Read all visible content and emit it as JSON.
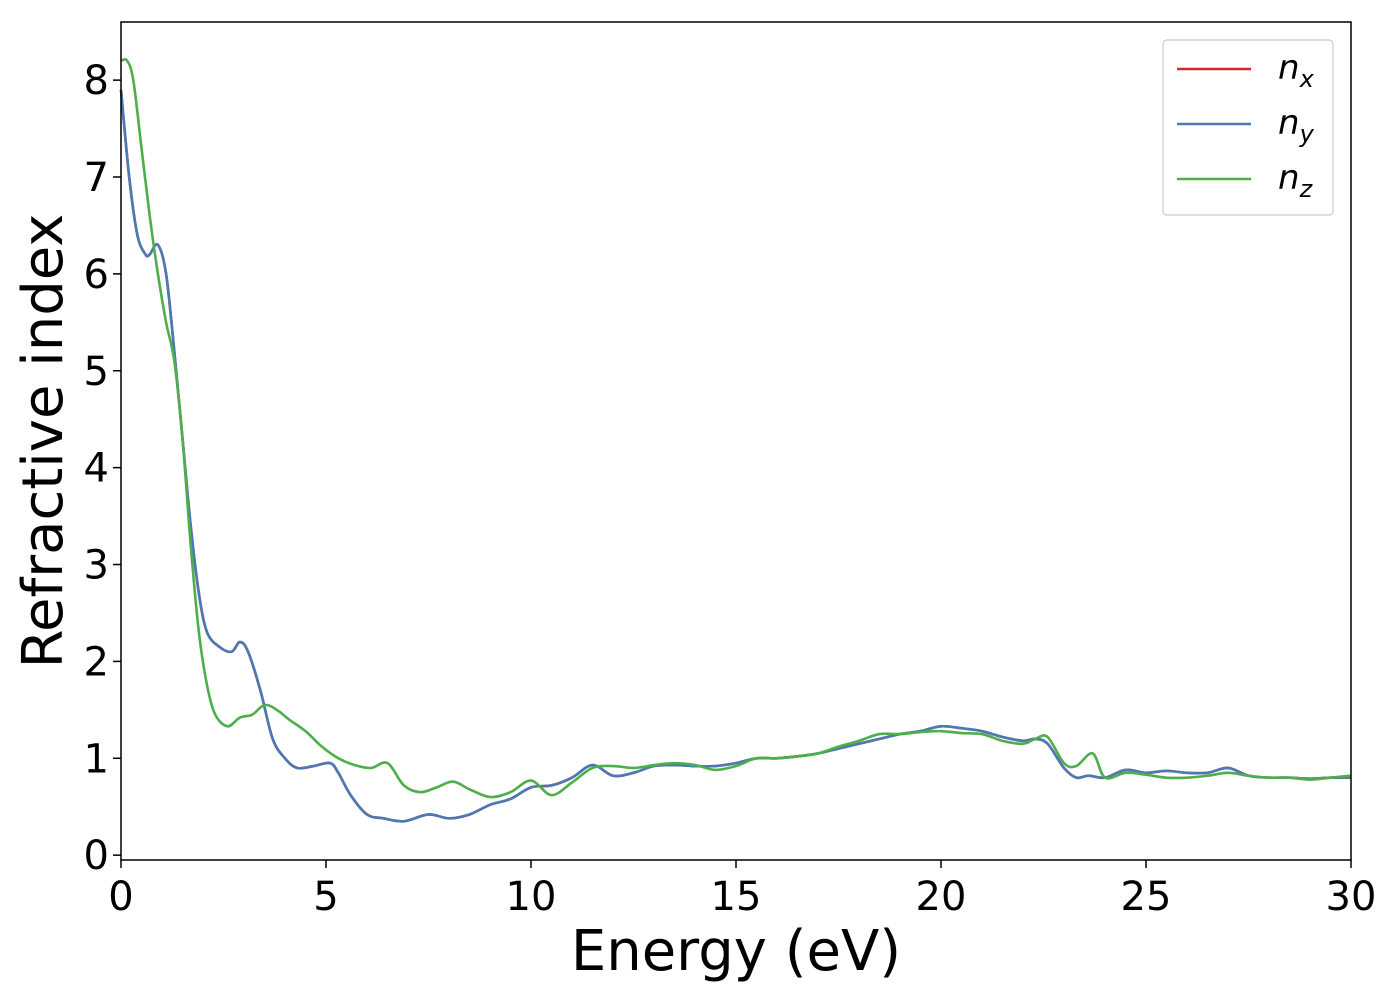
{
  "chart_data": {
    "type": "line",
    "xlabel": "Energy (eV)",
    "ylabel": "Refractive index",
    "xlim": [
      0,
      30
    ],
    "ylim": [
      -0.05,
      8.6
    ],
    "xticks": [
      "0",
      "5",
      "10",
      "15",
      "20",
      "25",
      "30"
    ],
    "yticks": [
      "0",
      "1",
      "2",
      "3",
      "4",
      "5",
      "6",
      "7",
      "8"
    ],
    "grid": false,
    "legend_position": "top-right",
    "series": [
      {
        "name": "n",
        "subscript": "x",
        "color": "#d62728",
        "x": [
          0,
          0.2,
          0.4,
          0.6,
          0.7,
          0.9,
          1.1,
          1.3,
          1.5,
          1.7,
          1.9,
          2.1,
          2.4,
          2.7,
          2.9,
          3.1,
          3.4,
          3.7,
          4.0,
          4.3,
          4.7,
          5.1,
          5.3,
          5.6,
          6.0,
          6.4,
          6.9,
          7.5,
          8.0,
          8.5,
          9.0,
          9.5,
          10.0,
          10.5,
          11.0,
          11.5,
          12.0,
          12.5,
          13.0,
          13.5,
          14.0,
          14.5,
          15.0,
          15.5,
          16.0,
          16.5,
          17.0,
          17.5,
          18.0,
          18.5,
          19.0,
          19.5,
          20.0,
          20.5,
          21.0,
          21.5,
          22.0,
          22.3,
          22.6,
          23.0,
          23.3,
          23.6,
          24.0,
          24.5,
          25.0,
          25.5,
          26.0,
          26.5,
          27.0,
          27.5,
          28.0,
          28.5,
          29.0,
          29.5,
          30.0
        ],
        "y": [
          7.9,
          7.0,
          6.4,
          6.2,
          6.2,
          6.3,
          6.0,
          5.2,
          4.3,
          3.4,
          2.7,
          2.3,
          2.15,
          2.1,
          2.2,
          2.1,
          1.7,
          1.2,
          1.0,
          0.9,
          0.92,
          0.95,
          0.85,
          0.62,
          0.42,
          0.38,
          0.35,
          0.42,
          0.38,
          0.42,
          0.52,
          0.58,
          0.7,
          0.72,
          0.8,
          0.93,
          0.82,
          0.85,
          0.92,
          0.93,
          0.92,
          0.92,
          0.95,
          1.0,
          1.0,
          1.02,
          1.05,
          1.1,
          1.15,
          1.2,
          1.25,
          1.28,
          1.33,
          1.31,
          1.28,
          1.22,
          1.18,
          1.2,
          1.15,
          0.9,
          0.8,
          0.82,
          0.8,
          0.88,
          0.85,
          0.87,
          0.85,
          0.85,
          0.9,
          0.82,
          0.8,
          0.8,
          0.79,
          0.8,
          0.8
        ]
      },
      {
        "name": "n",
        "subscript": "y",
        "color": "#4a7ab5",
        "x": [
          0,
          0.2,
          0.4,
          0.6,
          0.7,
          0.9,
          1.1,
          1.3,
          1.5,
          1.7,
          1.9,
          2.1,
          2.4,
          2.7,
          2.9,
          3.1,
          3.4,
          3.7,
          4.0,
          4.3,
          4.7,
          5.1,
          5.3,
          5.6,
          6.0,
          6.4,
          6.9,
          7.5,
          8.0,
          8.5,
          9.0,
          9.5,
          10.0,
          10.5,
          11.0,
          11.5,
          12.0,
          12.5,
          13.0,
          13.5,
          14.0,
          14.5,
          15.0,
          15.5,
          16.0,
          16.5,
          17.0,
          17.5,
          18.0,
          18.5,
          19.0,
          19.5,
          20.0,
          20.5,
          21.0,
          21.5,
          22.0,
          22.3,
          22.6,
          23.0,
          23.3,
          23.6,
          24.0,
          24.5,
          25.0,
          25.5,
          26.0,
          26.5,
          27.0,
          27.5,
          28.0,
          28.5,
          29.0,
          29.5,
          30.0
        ],
        "y": [
          7.9,
          7.0,
          6.4,
          6.2,
          6.2,
          6.3,
          6.0,
          5.2,
          4.3,
          3.4,
          2.7,
          2.3,
          2.15,
          2.1,
          2.2,
          2.1,
          1.7,
          1.2,
          1.0,
          0.9,
          0.92,
          0.95,
          0.85,
          0.62,
          0.42,
          0.38,
          0.35,
          0.42,
          0.38,
          0.42,
          0.52,
          0.58,
          0.7,
          0.72,
          0.8,
          0.93,
          0.82,
          0.85,
          0.92,
          0.93,
          0.92,
          0.92,
          0.95,
          1.0,
          1.0,
          1.02,
          1.05,
          1.1,
          1.15,
          1.2,
          1.25,
          1.28,
          1.33,
          1.31,
          1.28,
          1.22,
          1.18,
          1.2,
          1.15,
          0.9,
          0.8,
          0.82,
          0.8,
          0.88,
          0.85,
          0.87,
          0.85,
          0.85,
          0.9,
          0.82,
          0.8,
          0.8,
          0.79,
          0.8,
          0.8
        ]
      },
      {
        "name": "n",
        "subscript": "z",
        "color": "#4daf4a",
        "x": [
          0,
          0.15,
          0.3,
          0.5,
          0.7,
          0.9,
          1.1,
          1.3,
          1.5,
          1.7,
          1.9,
          2.1,
          2.3,
          2.6,
          2.9,
          3.2,
          3.5,
          3.8,
          4.1,
          4.5,
          4.9,
          5.3,
          5.7,
          6.1,
          6.5,
          6.9,
          7.3,
          7.7,
          8.1,
          8.5,
          9.0,
          9.5,
          10.0,
          10.5,
          11.0,
          11.5,
          12.0,
          12.5,
          13.0,
          13.5,
          14.0,
          14.5,
          15.0,
          15.5,
          16.0,
          16.5,
          17.0,
          17.5,
          18.0,
          18.5,
          19.0,
          19.5,
          20.0,
          20.5,
          21.0,
          21.5,
          22.0,
          22.3,
          22.6,
          23.0,
          23.3,
          23.7,
          24.0,
          24.5,
          25.0,
          25.5,
          26.0,
          26.5,
          27.0,
          27.5,
          28.0,
          28.5,
          29.0,
          29.5,
          30.0
        ],
        "y": [
          8.2,
          8.2,
          8.0,
          7.3,
          6.6,
          6.0,
          5.5,
          5.1,
          4.3,
          3.2,
          2.3,
          1.75,
          1.45,
          1.33,
          1.42,
          1.45,
          1.55,
          1.5,
          1.4,
          1.28,
          1.12,
          1.0,
          0.93,
          0.9,
          0.95,
          0.72,
          0.65,
          0.7,
          0.76,
          0.68,
          0.6,
          0.65,
          0.77,
          0.62,
          0.75,
          0.9,
          0.92,
          0.9,
          0.93,
          0.95,
          0.93,
          0.88,
          0.92,
          1.0,
          1.0,
          1.02,
          1.05,
          1.12,
          1.18,
          1.25,
          1.25,
          1.27,
          1.28,
          1.26,
          1.25,
          1.18,
          1.15,
          1.2,
          1.22,
          0.95,
          0.92,
          1.05,
          0.8,
          0.85,
          0.83,
          0.8,
          0.8,
          0.82,
          0.85,
          0.82,
          0.8,
          0.8,
          0.78,
          0.8,
          0.82
        ]
      }
    ]
  }
}
